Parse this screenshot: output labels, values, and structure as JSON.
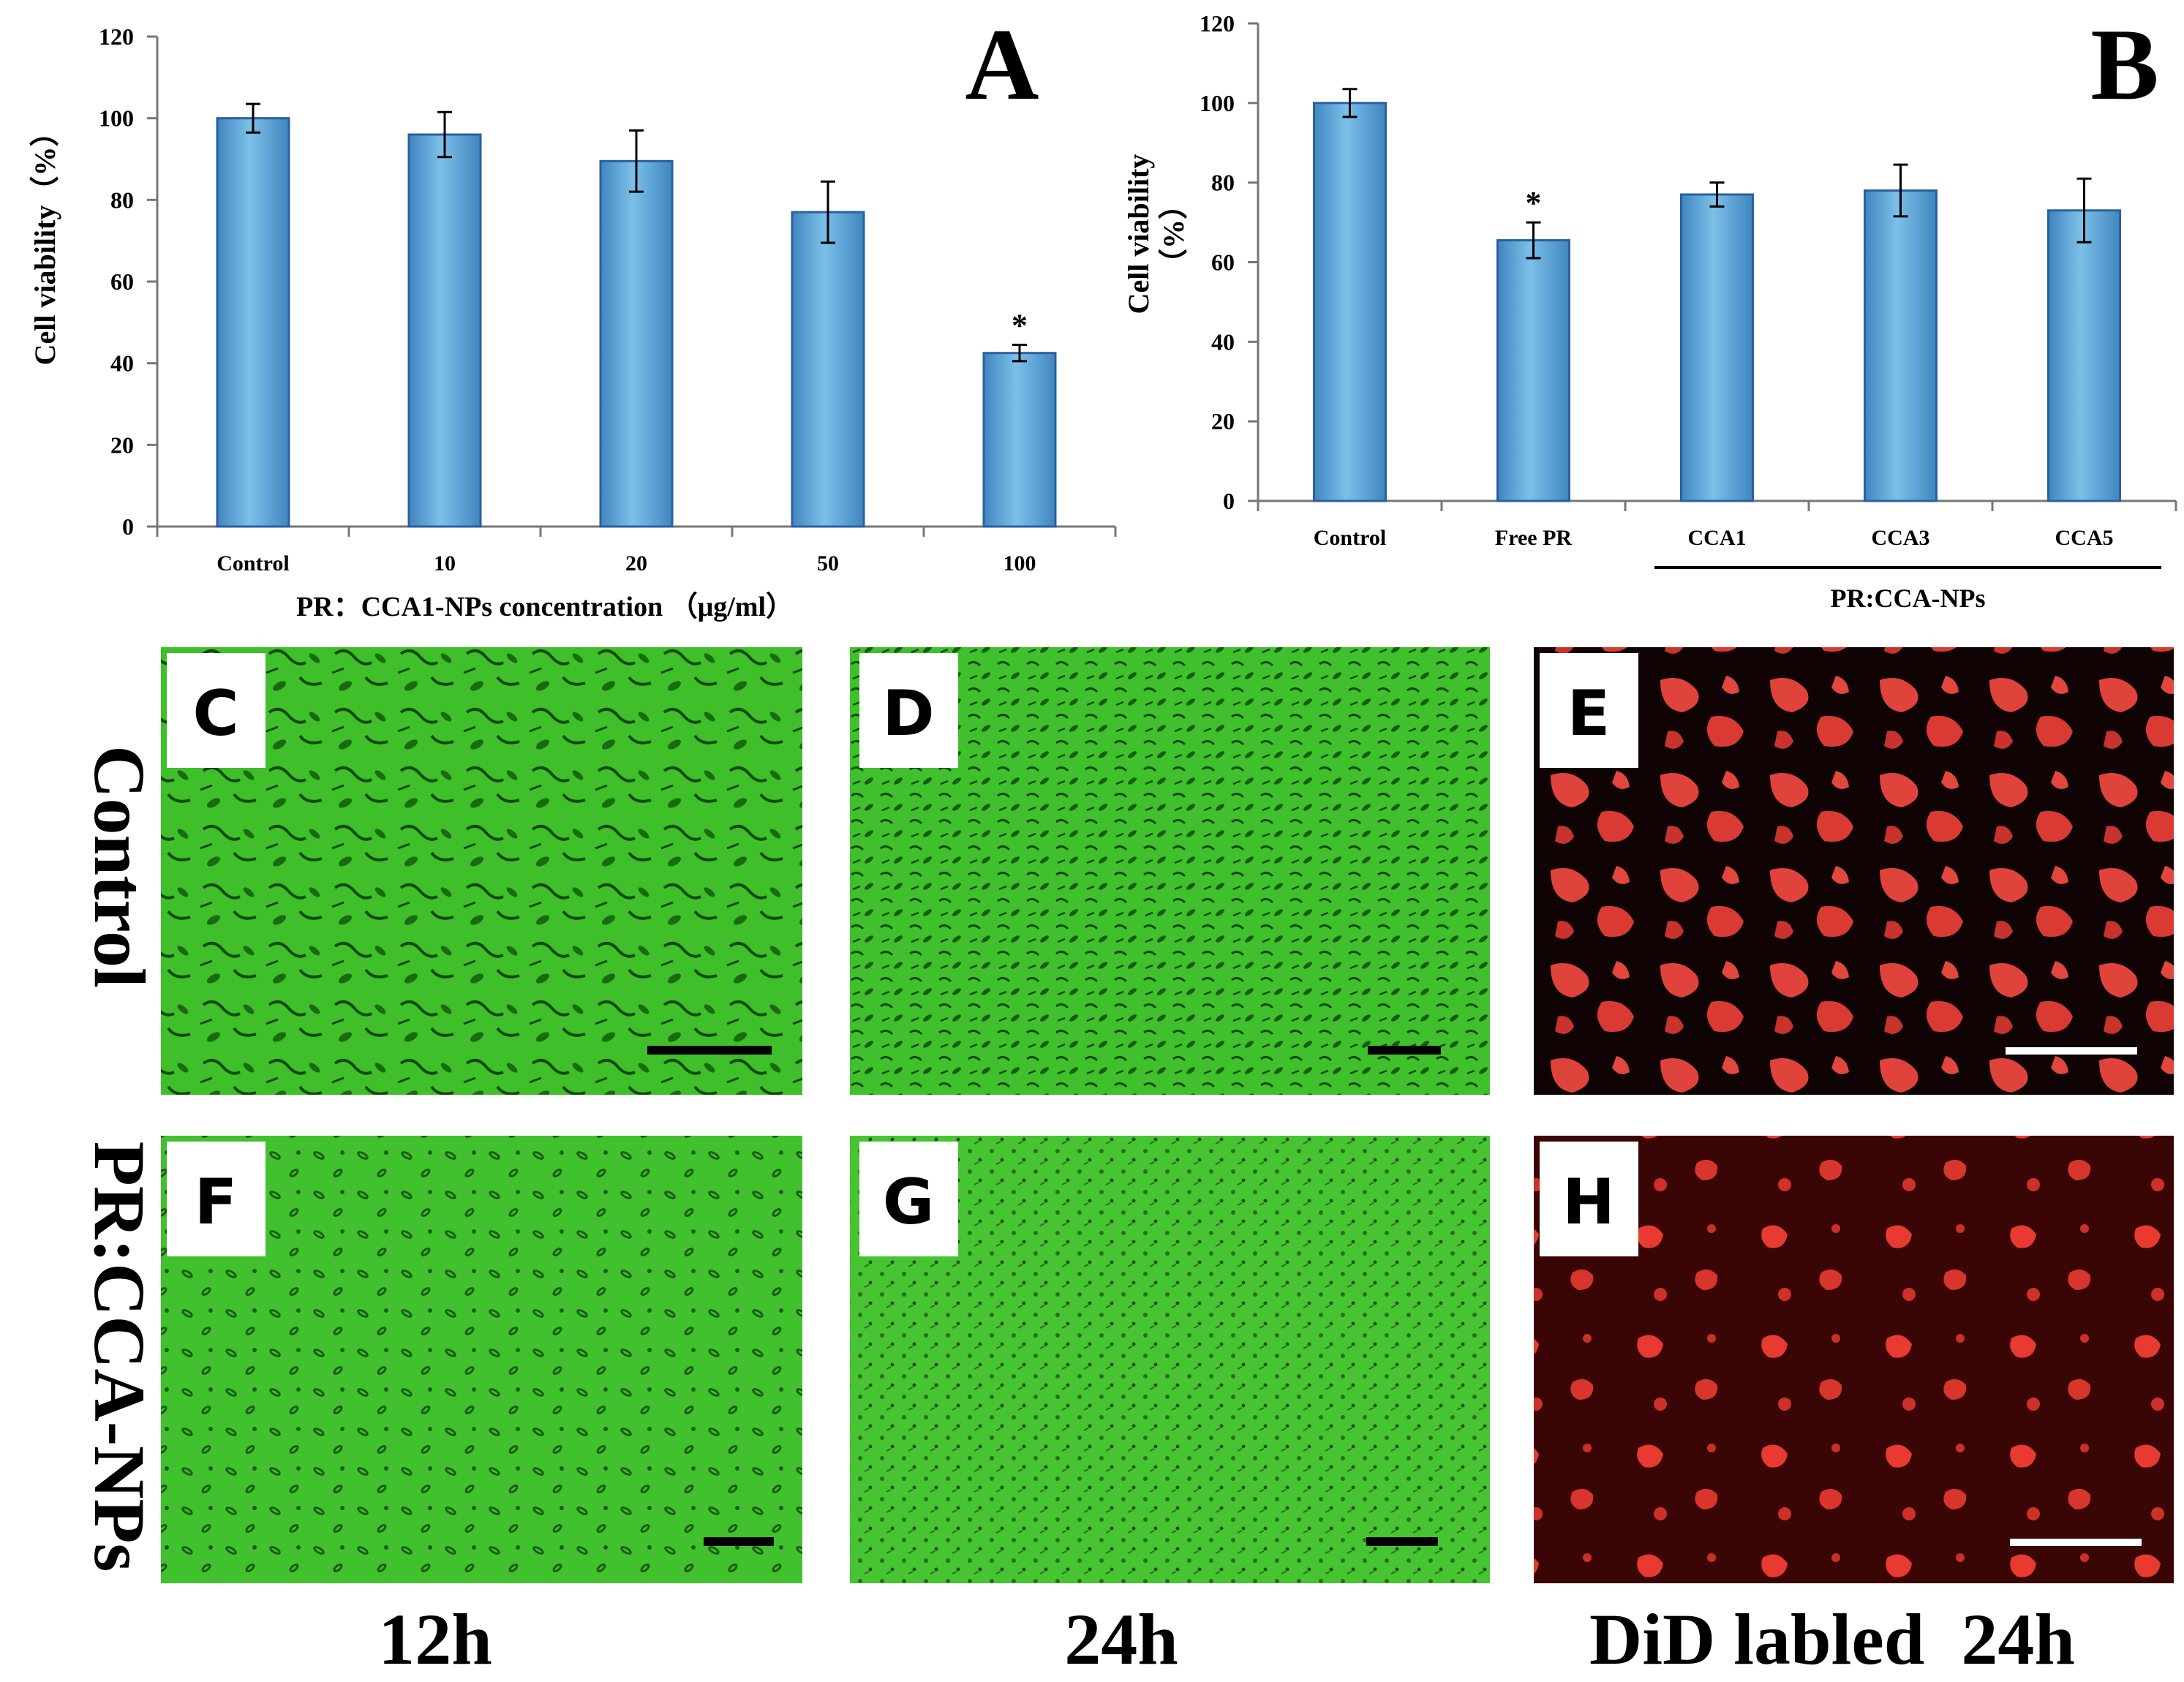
{
  "chart_data": [
    {
      "type": "bar",
      "panel": "A",
      "ylabel": "Cell viability（%）",
      "xlabel": "PR：CCA1-NPs concentration （μg/ml）",
      "categories": [
        "Control",
        "10",
        "20",
        "50",
        "100"
      ],
      "values": [
        100,
        96,
        89.5,
        77,
        42.5
      ],
      "errors": [
        3.5,
        5.5,
        7.5,
        7.5,
        2
      ],
      "significance": [
        "",
        "",
        "",
        "",
        "*"
      ],
      "ylim": [
        0,
        120
      ],
      "yticks": [
        "0",
        "20",
        "40",
        "60",
        "80",
        "100",
        "120"
      ],
      "bar_color": "#5fa8d6"
    },
    {
      "type": "bar",
      "panel": "B",
      "ylabel_lines": [
        "Cell viability",
        "（%）"
      ],
      "group_label": "PR:CCA-NPs",
      "categories": [
        "Control",
        "Free PR",
        "CCA1",
        "CCA3",
        "CCA5"
      ],
      "values": [
        100,
        65.5,
        77,
        78,
        73
      ],
      "errors": [
        3.5,
        4.5,
        3,
        6.5,
        8
      ],
      "significance": [
        "",
        "*",
        "",
        "",
        ""
      ],
      "ylim": [
        0,
        120
      ],
      "yticks": [
        "0",
        "20",
        "40",
        "60",
        "80",
        "100",
        "120"
      ],
      "bar_color": "#5fa8d6"
    }
  ],
  "micrographs": {
    "row_labels": [
      "Control",
      "PR:CCA-NPs"
    ],
    "column_labels": [
      "12h",
      "24h",
      "DiD labled  24h"
    ],
    "panels": [
      {
        "label": "C",
        "kind": "phase"
      },
      {
        "label": "D",
        "kind": "phase"
      },
      {
        "label": "E",
        "kind": "fluorescence"
      },
      {
        "label": "F",
        "kind": "phase"
      },
      {
        "label": "G",
        "kind": "phase"
      },
      {
        "label": "H",
        "kind": "fluorescence"
      }
    ]
  }
}
